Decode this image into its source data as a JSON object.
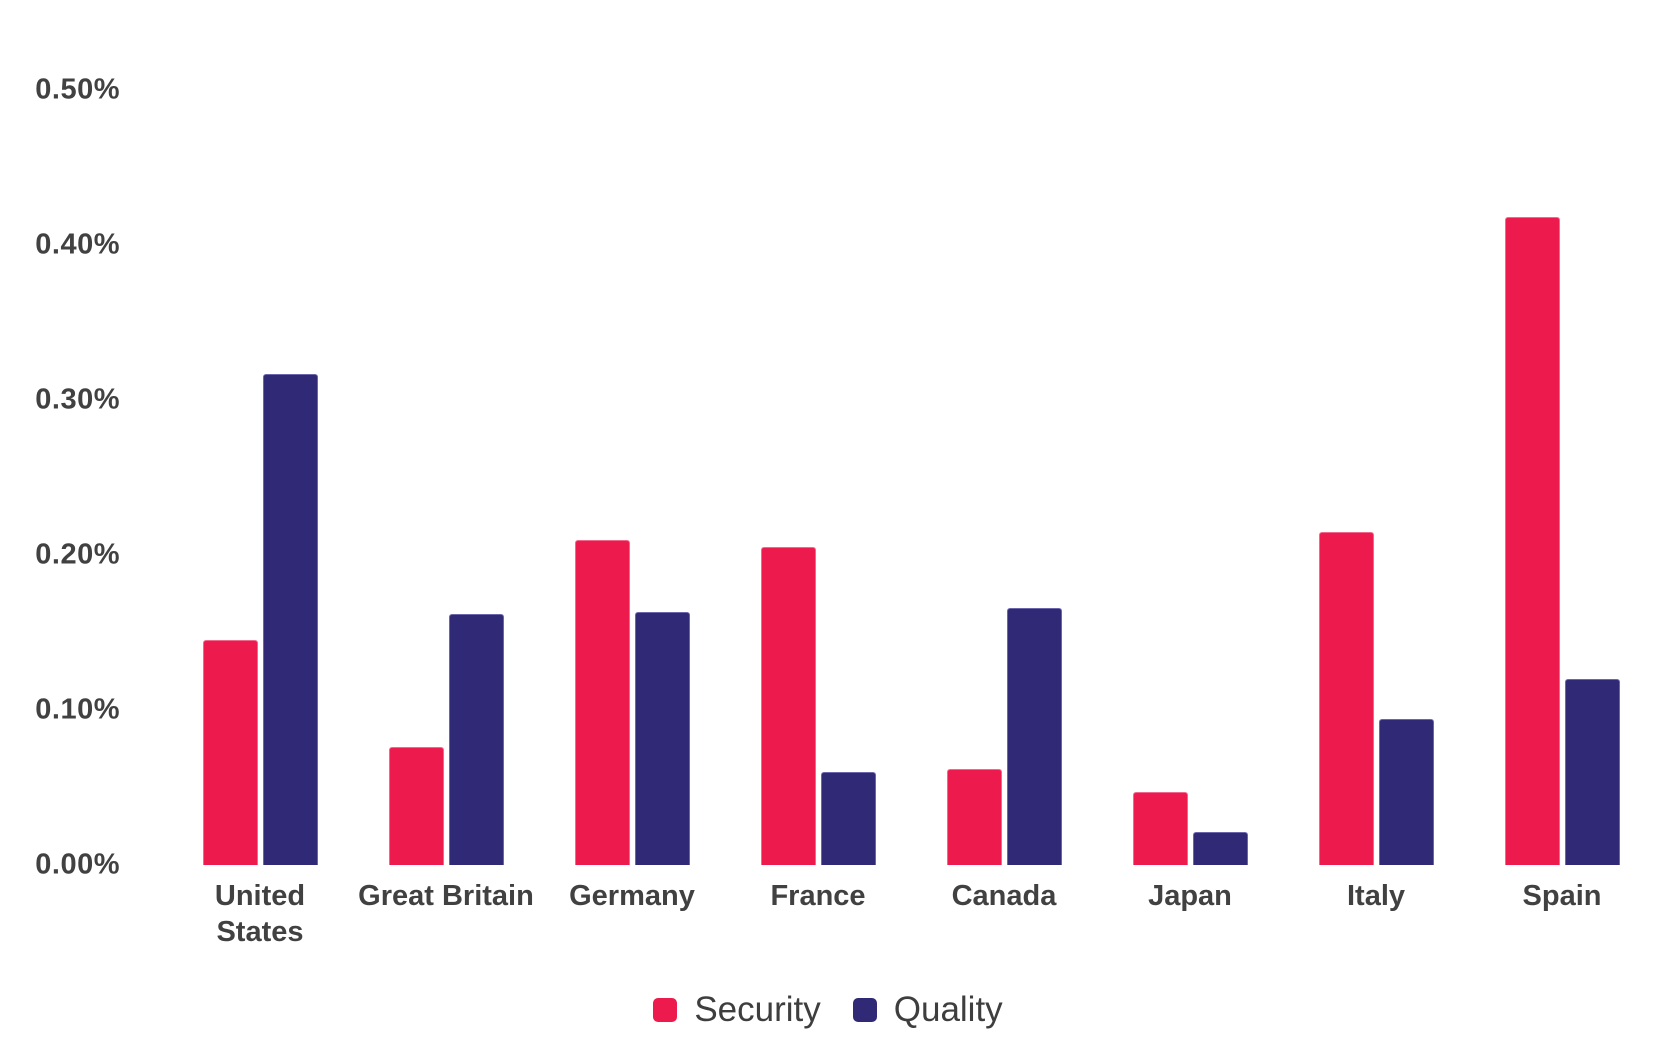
{
  "chart_data": {
    "type": "bar",
    "title": "",
    "xlabel": "",
    "ylabel": "",
    "unit": "%",
    "categories": [
      "United States",
      "Great Britain",
      "Germany",
      "France",
      "Canada",
      "Japan",
      "Italy",
      "Spain"
    ],
    "category_lines": [
      [
        "United",
        "States"
      ],
      [
        "Great Britain"
      ],
      [
        "Germany"
      ],
      [
        "France"
      ],
      [
        "Canada"
      ],
      [
        "Japan"
      ],
      [
        "Italy"
      ],
      [
        "Spain"
      ]
    ],
    "series": [
      {
        "name": "Security",
        "color": "#ED1A4D",
        "edge_color": "#F4678D",
        "values": [
          0.145,
          0.076,
          0.21,
          0.205,
          0.062,
          0.047,
          0.215,
          0.418
        ]
      },
      {
        "name": "Quality",
        "color": "#302A76",
        "edge_color": "#6B65AC",
        "values": [
          0.317,
          0.162,
          0.163,
          0.06,
          0.166,
          0.021,
          0.094,
          0.12
        ]
      }
    ],
    "ylim": [
      0,
      0.5
    ],
    "yticks": [
      "0.00%",
      "0.10%",
      "0.20%",
      "0.30%",
      "0.40%",
      "0.50%"
    ],
    "grid": false,
    "legend_position": "bottom"
  },
  "colors": {
    "background": "#FFFFFF",
    "axis_text": "#414141",
    "legend_text": "#3E3E3E"
  }
}
